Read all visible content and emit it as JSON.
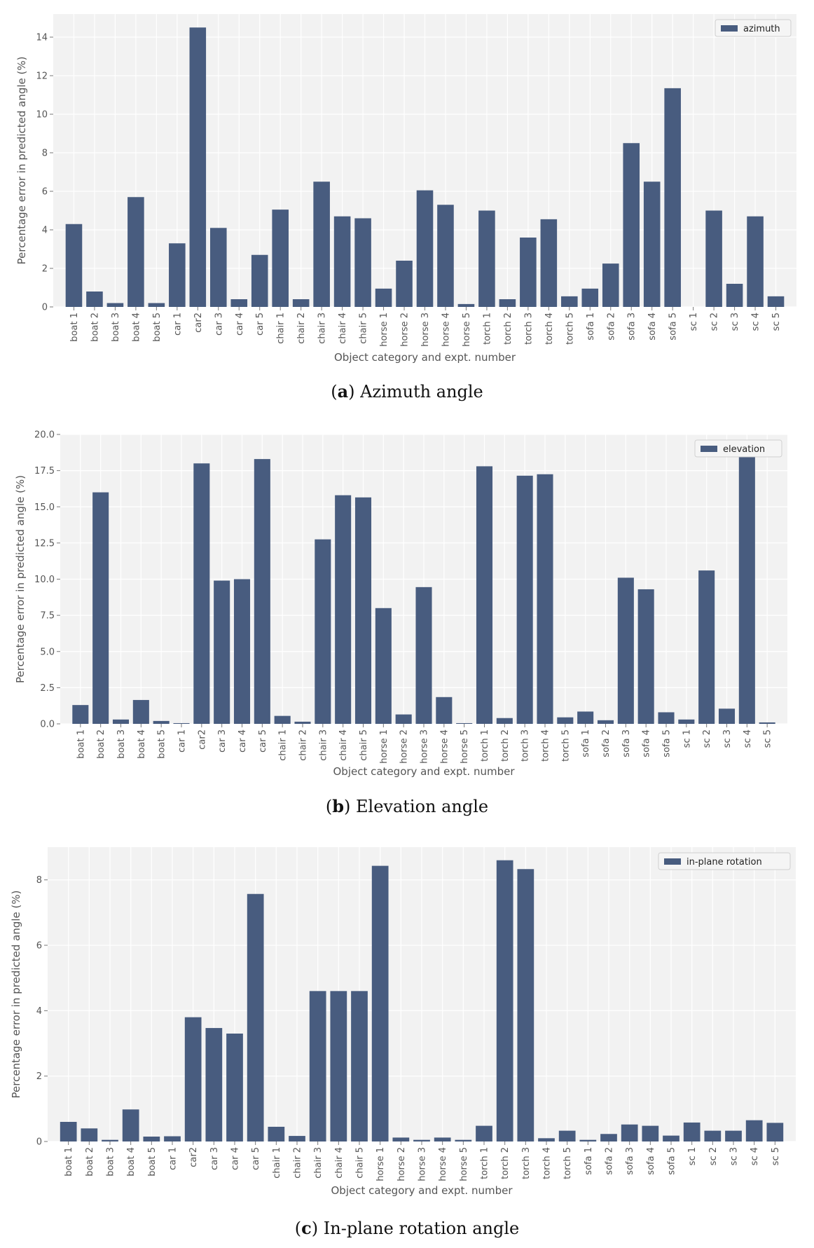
{
  "chart_data": [
    {
      "type": "bar",
      "id": "azimuth",
      "panel_letter": "a",
      "caption": "Azimuth angle",
      "categories": [
        "boat 1",
        "boat 2",
        "boat 3",
        "boat 4",
        "boat 5",
        "car 1",
        "car2",
        "car 3",
        "car 4",
        "car 5",
        "chair 1",
        "chair 2",
        "chair 3",
        "chair 4",
        "chair 5",
        "horse 1",
        "horse 2",
        "horse 3",
        "horse 4",
        "horse 5",
        "torch 1",
        "torch 2",
        "torch 3",
        "torch 4",
        "torch 5",
        "sofa 1",
        "sofa 2",
        "sofa 3",
        "sofa 4",
        "sofa 5",
        "sc 1",
        "sc 2",
        "sc 3",
        "sc 4",
        "sc 5"
      ],
      "series": [
        {
          "name": "azimuth",
          "values": [
            4.3,
            0.8,
            0.2,
            5.7,
            0.2,
            3.3,
            14.5,
            4.1,
            0.4,
            2.7,
            5.05,
            0.4,
            6.5,
            4.7,
            4.6,
            0.95,
            2.4,
            6.05,
            5.3,
            0.15,
            5.0,
            0.4,
            3.6,
            4.55,
            0.55,
            0.95,
            2.25,
            8.5,
            6.5,
            11.35,
            0.0,
            5.0,
            1.2,
            4.7,
            0.55
          ]
        }
      ],
      "xlabel": "Object category and expt. number",
      "ylabel": "Percentage error in predicted angle (%)",
      "ylim": [
        0,
        15.2
      ],
      "yticks": [
        0,
        2,
        4,
        6,
        8,
        10,
        12,
        14
      ],
      "ytick_labels": [
        "0",
        "2",
        "4",
        "6",
        "8",
        "10",
        "12",
        "14"
      ],
      "legend": "top-right",
      "color": "#485c7f",
      "bg": "#f2f2f2"
    },
    {
      "type": "bar",
      "id": "elevation",
      "panel_letter": "b",
      "caption": "Elevation angle",
      "categories": [
        "boat 1",
        "boat 2",
        "boat 3",
        "boat 4",
        "boat 5",
        "car 1",
        "car2",
        "car 3",
        "car 4",
        "car 5",
        "chair 1",
        "chair 2",
        "chair 3",
        "chair 4",
        "chair 5",
        "horse 1",
        "horse 2",
        "horse 3",
        "horse 4",
        "horse 5",
        "torch 1",
        "torch 2",
        "torch 3",
        "torch 4",
        "torch 5",
        "sofa 1",
        "sofa 2",
        "sofa 3",
        "sofa 4",
        "sofa 5",
        "sc 1",
        "sc 2",
        "sc 3",
        "sc 4",
        "sc 5"
      ],
      "series": [
        {
          "name": "elevation",
          "values": [
            1.3,
            16.0,
            0.3,
            1.65,
            0.2,
            0.05,
            18.0,
            9.9,
            10.0,
            18.3,
            0.55,
            0.15,
            12.75,
            15.8,
            15.65,
            8.0,
            0.65,
            9.45,
            1.85,
            0.05,
            17.8,
            0.4,
            17.15,
            17.25,
            0.45,
            0.85,
            0.25,
            10.1,
            9.3,
            0.8,
            0.3,
            10.6,
            1.05,
            19.2,
            0.1
          ]
        }
      ],
      "xlabel": "Object category and expt. number",
      "ylabel": "Percentage error in predicted angle (%)",
      "ylim": [
        0,
        20.0
      ],
      "yticks": [
        0,
        2.5,
        5,
        7.5,
        10,
        12.5,
        15,
        17.5,
        20
      ],
      "ytick_labels": [
        "0.0",
        "2.5",
        "5.0",
        "7.5",
        "10.0",
        "12.5",
        "15.0",
        "17.5",
        "20.0"
      ],
      "legend": "top-right",
      "color": "#485c7f",
      "bg": "#f2f2f2"
    },
    {
      "type": "bar",
      "id": "inplane",
      "panel_letter": "c",
      "caption": "In-plane rotation angle",
      "categories": [
        "boat 1",
        "boat 2",
        "boat 3",
        "boat 4",
        "boat 5",
        "car 1",
        "car2",
        "car 3",
        "car 4",
        "car 5",
        "chair 1",
        "chair 2",
        "chair 3",
        "chair 4",
        "chair 5",
        "horse 1",
        "horse 2",
        "horse 3",
        "horse 4",
        "horse 5",
        "torch 1",
        "torch 2",
        "torch 3",
        "torch 4",
        "torch 5",
        "sofa 1",
        "sofa 2",
        "sofa 3",
        "sofa 4",
        "sofa 5",
        "sc 1",
        "sc 2",
        "sc 3",
        "sc 4",
        "sc 5"
      ],
      "series": [
        {
          "name": "in-plane rotation",
          "values": [
            0.6,
            0.4,
            0.05,
            0.98,
            0.15,
            0.16,
            3.8,
            3.47,
            3.3,
            7.57,
            0.45,
            0.17,
            4.6,
            4.6,
            4.6,
            8.43,
            0.12,
            0.05,
            0.12,
            0.05,
            0.48,
            8.6,
            8.33,
            0.1,
            0.33,
            0.05,
            0.23,
            0.52,
            0.48,
            0.18,
            0.58,
            0.33,
            0.33,
            0.65,
            0.57
          ]
        }
      ],
      "xlabel": "Object category and expt. number",
      "ylabel": "Percentage error in predicted angle (%)",
      "ylim": [
        0,
        9.0
      ],
      "yticks": [
        0,
        2,
        4,
        6,
        8
      ],
      "ytick_labels": [
        "0",
        "2",
        "4",
        "6",
        "8"
      ],
      "legend": "top-right",
      "color": "#485c7f",
      "bg": "#f2f2f2"
    }
  ]
}
